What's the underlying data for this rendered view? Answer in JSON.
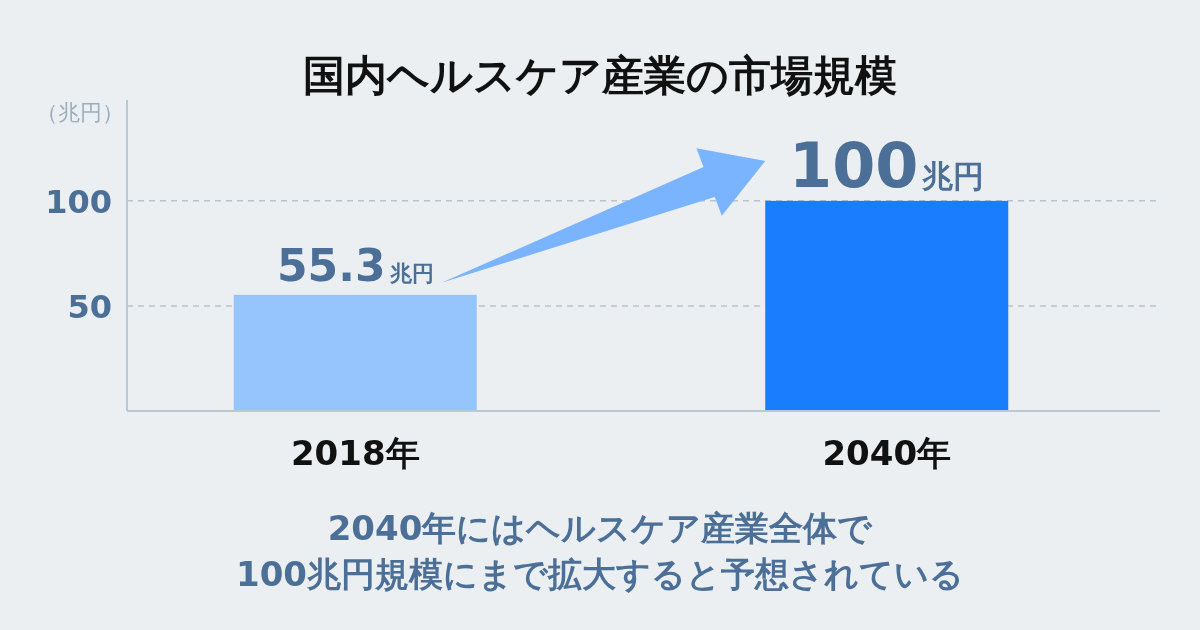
{
  "chart_data": {
    "type": "bar",
    "title": "国内ヘルスケア産業の市場規模",
    "ylabel": "（兆円）",
    "categories": [
      "2018年",
      "2040年"
    ],
    "values": [
      55.3,
      100
    ],
    "colors": [
      "#96c5fd",
      "#1a7dfd"
    ],
    "value_labels": [
      "55.3兆円",
      "100兆円"
    ],
    "ylim": [
      0,
      148
    ],
    "yticks": [
      50,
      100
    ],
    "grid": "y",
    "annotations": [
      "2040年にはヘルスケア産業全体で",
      "100兆円規模にまで拡大すると予想されている"
    ]
  }
}
